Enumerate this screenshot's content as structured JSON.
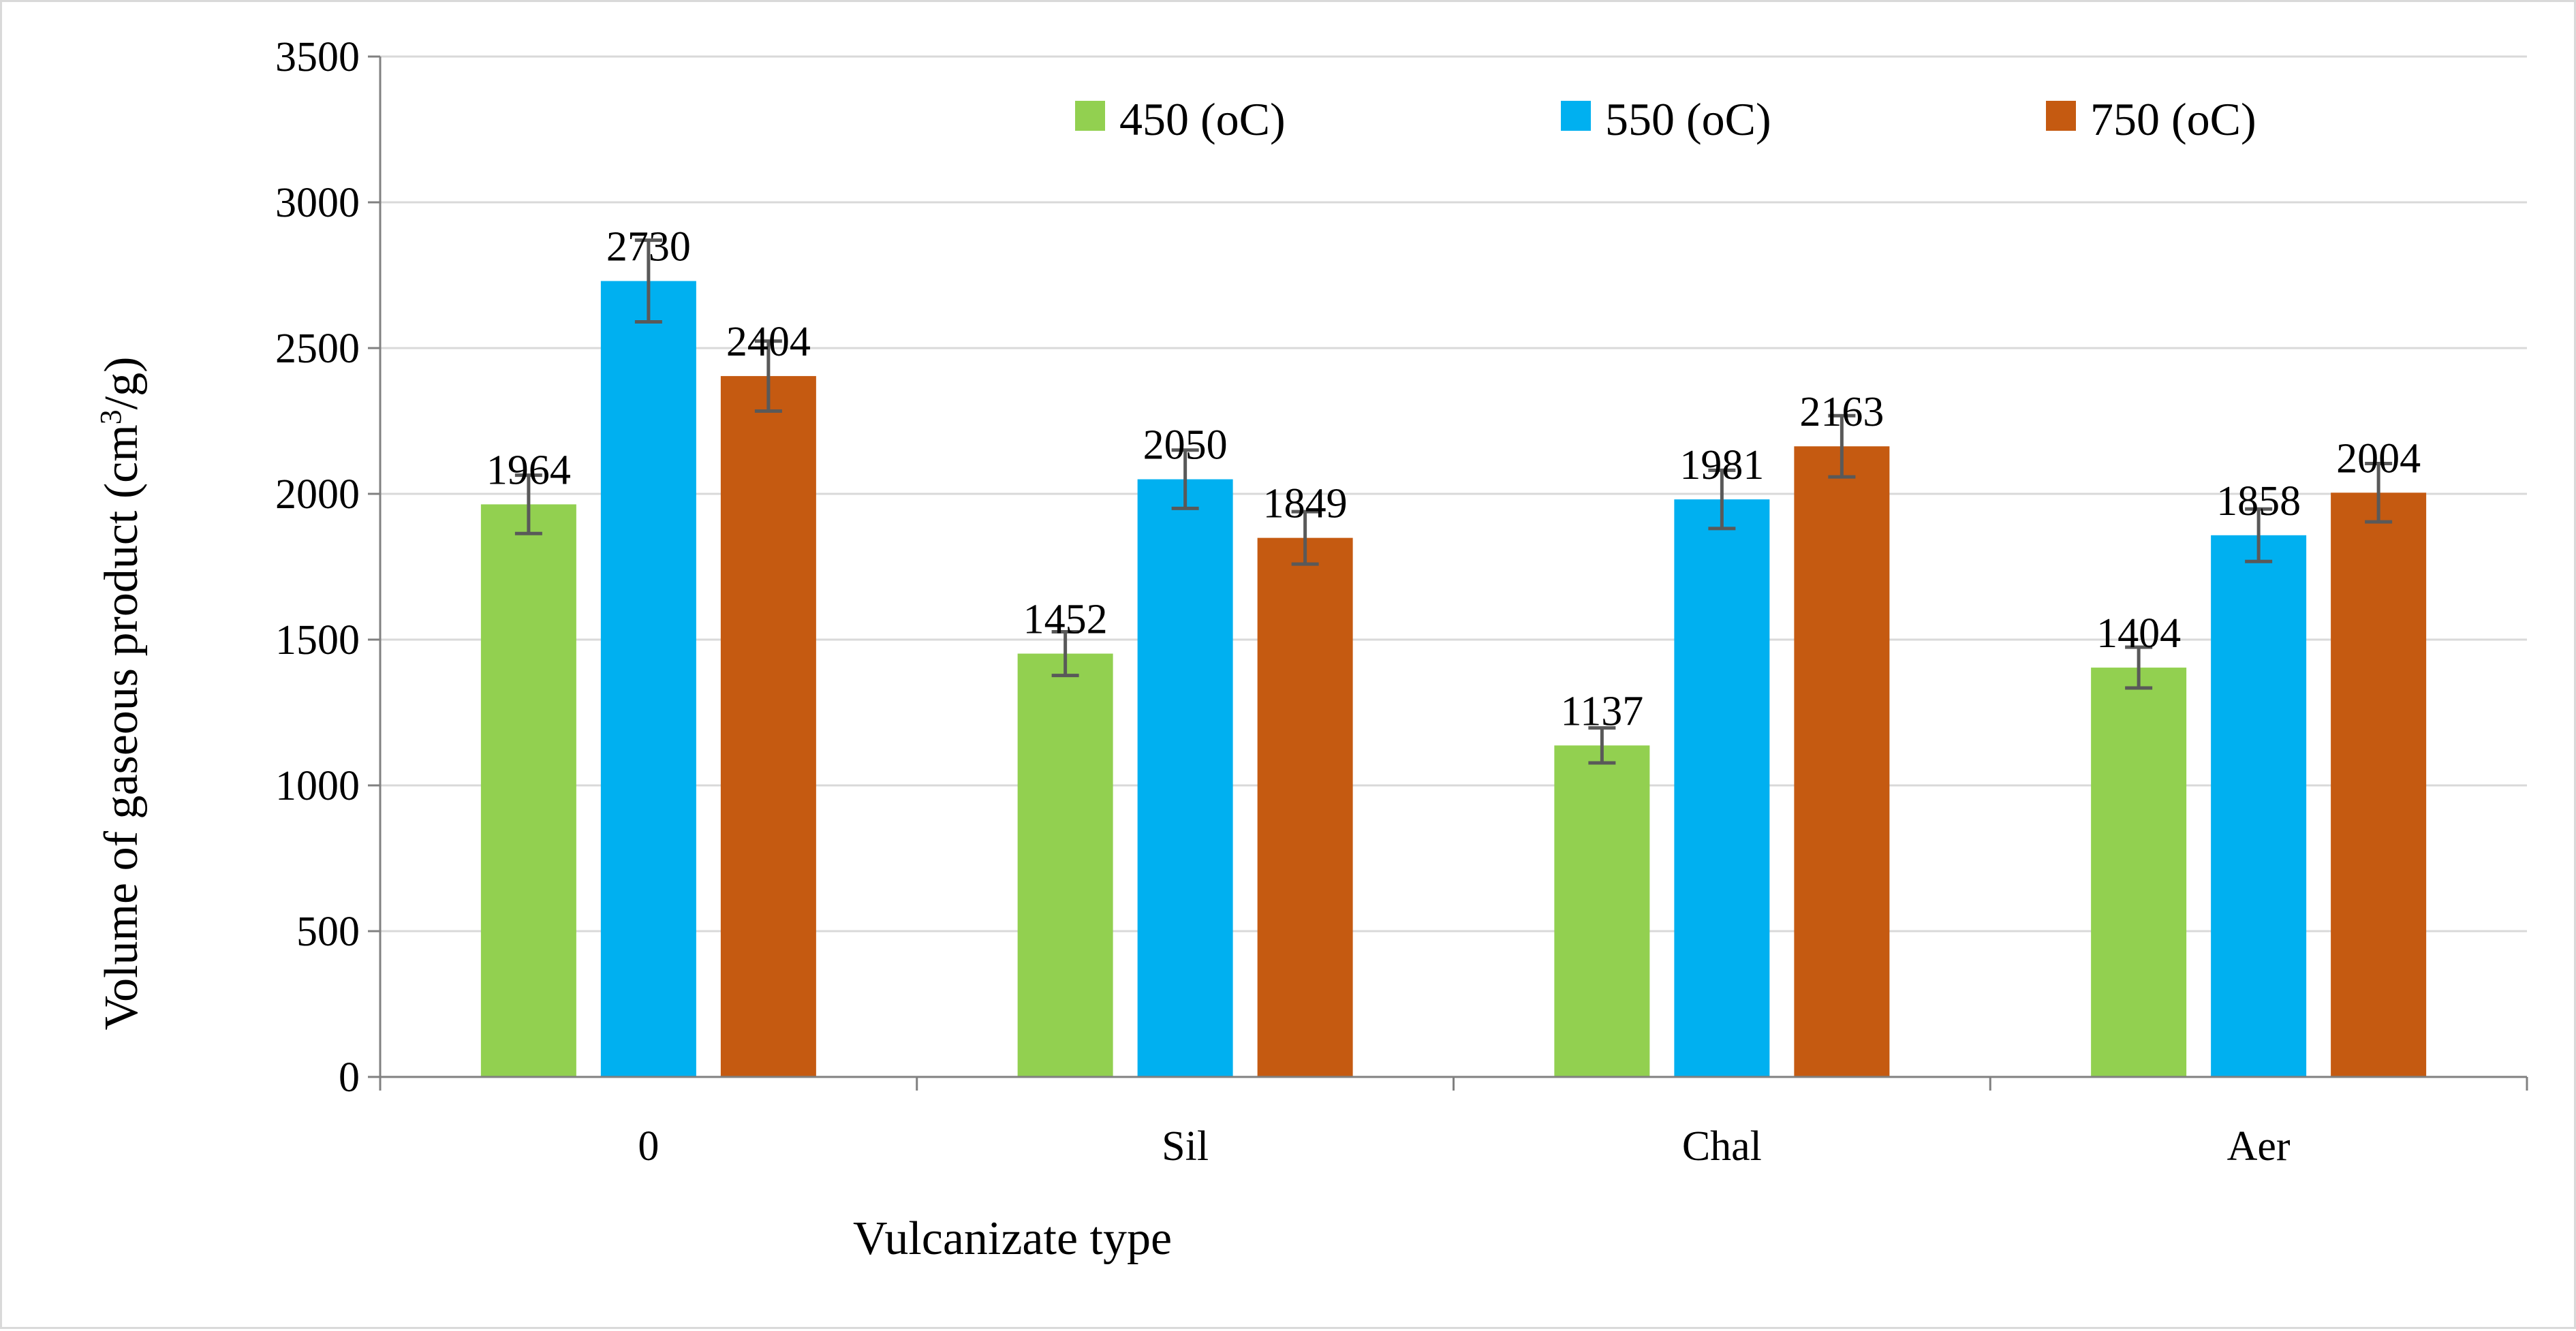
{
  "chart_data": {
    "type": "bar",
    "title": "",
    "xlabel": "Vulcanizate type",
    "ylabel_main": "Volume of gaseous product (cm",
    "ylabel_sup": "3",
    "ylabel_tail": "/g)",
    "categories": [
      "0",
      "Sil",
      "Chal",
      "Aer"
    ],
    "series": [
      {
        "name": "450 (oC)",
        "color": "#92d050",
        "values": [
          1964,
          1452,
          1137,
          1404
        ],
        "errors": [
          100,
          75,
          60,
          70
        ]
      },
      {
        "name": "550 (oC)",
        "color": "#00b0f0",
        "values": [
          2730,
          2050,
          1981,
          1858
        ],
        "errors": [
          140,
          100,
          100,
          90
        ]
      },
      {
        "name": "750 (oC)",
        "color": "#c55a11",
        "values": [
          2404,
          1849,
          2163,
          2004
        ],
        "errors": [
          120,
          90,
          105,
          100
        ]
      }
    ],
    "ylim": [
      0,
      3500
    ],
    "yticks": [
      0,
      500,
      1000,
      1500,
      2000,
      2500,
      3000,
      3500
    ],
    "grid": true,
    "legend_position": "top-center"
  }
}
